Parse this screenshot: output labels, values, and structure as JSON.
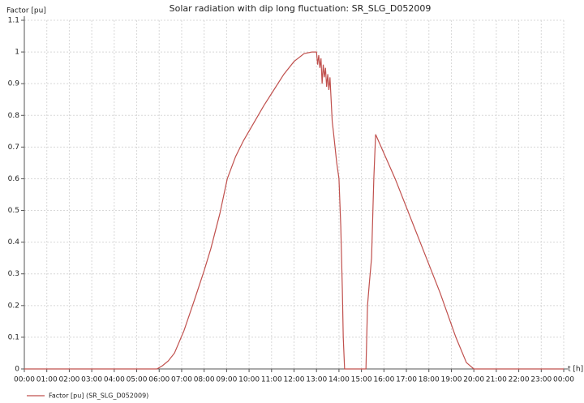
{
  "chart_data": {
    "type": "line",
    "title": "Solar radiation with dip long fluctuation: SR_SLG_D052009",
    "y_label": "Factor [pu]",
    "x_label": "t [h]",
    "x": [
      0,
      5.5,
      5.9,
      6.14,
      6.4,
      6.68,
      7.1,
      7.58,
      8.0,
      8.3,
      8.7,
      9.03,
      9.4,
      9.75,
      10.2,
      10.65,
      11.1,
      11.55,
      12.0,
      12.45,
      12.8,
      13.0,
      13.05,
      13.1,
      13.15,
      13.2,
      13.25,
      13.3,
      13.35,
      13.4,
      13.45,
      13.5,
      13.55,
      13.6,
      13.7,
      13.75,
      13.9,
      14.0,
      14.08,
      14.15,
      14.19,
      14.25,
      15.2,
      15.27,
      15.35,
      15.45,
      15.55,
      15.63,
      16.5,
      17.5,
      18.5,
      19.2,
      19.67,
      20.0,
      24
    ],
    "series": [
      {
        "name": "Factor [pu] (SR_SLG_D052009)",
        "color": "#c0504d",
        "values": [
          0,
          0,
          0,
          0.01,
          0.025,
          0.05,
          0.12,
          0.22,
          0.31,
          0.38,
          0.49,
          0.6,
          0.67,
          0.72,
          0.775,
          0.83,
          0.88,
          0.93,
          0.97,
          0.995,
          1.0,
          1.0,
          0.96,
          0.99,
          0.95,
          0.98,
          0.9,
          0.96,
          0.92,
          0.95,
          0.89,
          0.93,
          0.88,
          0.92,
          0.78,
          0.75,
          0.65,
          0.6,
          0.45,
          0.25,
          0.1,
          0,
          0,
          0.2,
          0.27,
          0.35,
          0.6,
          0.74,
          0.6,
          0.42,
          0.24,
          0.1,
          0.02,
          0,
          0
        ]
      }
    ],
    "xlim": [
      0,
      24
    ],
    "ylim": [
      0,
      1.1
    ],
    "xticks": [
      {
        "value": 0,
        "label": "00:00"
      },
      {
        "value": 1,
        "label": "01:00"
      },
      {
        "value": 2,
        "label": "02:00"
      },
      {
        "value": 3,
        "label": "03:00"
      },
      {
        "value": 4,
        "label": "04:00"
      },
      {
        "value": 5,
        "label": "05:00"
      },
      {
        "value": 6,
        "label": "06:00"
      },
      {
        "value": 7,
        "label": "07:00"
      },
      {
        "value": 8,
        "label": "08:00"
      },
      {
        "value": 9,
        "label": "09:00"
      },
      {
        "value": 10,
        "label": "10:00"
      },
      {
        "value": 11,
        "label": "11:00"
      },
      {
        "value": 12,
        "label": "12:00"
      },
      {
        "value": 13,
        "label": "13:00"
      },
      {
        "value": 14,
        "label": "14:00"
      },
      {
        "value": 15,
        "label": "15:00"
      },
      {
        "value": 16,
        "label": "16:00"
      },
      {
        "value": 17,
        "label": "17:00"
      },
      {
        "value": 18,
        "label": "18:00"
      },
      {
        "value": 19,
        "label": "19:00"
      },
      {
        "value": 20,
        "label": "20:00"
      },
      {
        "value": 21,
        "label": "21:00"
      },
      {
        "value": 22,
        "label": "22:00"
      },
      {
        "value": 23,
        "label": "23:00"
      },
      {
        "value": 24,
        "label": "00:00"
      }
    ],
    "yticks": [
      0,
      0.1,
      0.2,
      0.3,
      0.4,
      0.5,
      0.6,
      0.7,
      0.8,
      0.9,
      1,
      1.1
    ],
    "grid": true
  }
}
